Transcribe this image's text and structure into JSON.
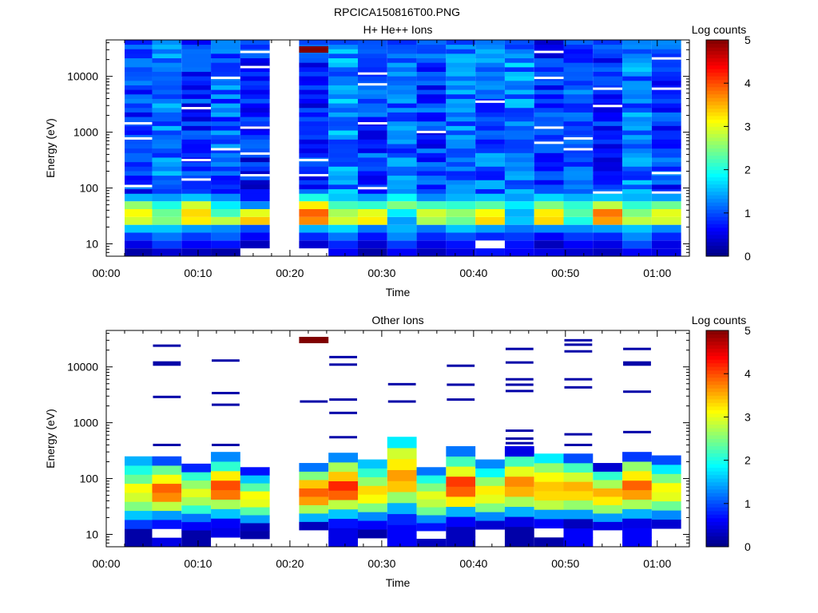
{
  "figure_title": "RPCICA150816T00.PNG",
  "chart_data": [
    {
      "type": "heatmap",
      "title": "H+ He++ Ions",
      "xlabel": "Time",
      "ylabel": "Energy (eV)",
      "colorbar_label": "Log counts",
      "x_ticks": [
        "00:00",
        "00:10",
        "00:20",
        "00:30",
        "00:40",
        "00:50",
        "01:00"
      ],
      "y_ticks": [
        "10",
        "100",
        "1000",
        "10000"
      ],
      "y_scale": "log",
      "ylim": [
        6,
        45000
      ],
      "colorbar_ticks": [
        "0",
        "1",
        "2",
        "3",
        "4",
        "5"
      ],
      "colorbar_range": [
        0,
        5
      ],
      "columns": [
        {
          "start": 2.0,
          "end": 5.0,
          "low": [
            0.2,
            0.5,
            0.9,
            1.6,
            2.9,
            3.1,
            2.6,
            1.5
          ],
          "high": 0.9,
          "gaps": [
            0.62,
            0.55,
            0.33
          ]
        },
        {
          "start": 5.0,
          "end": 8.2,
          "low": [
            0.4,
            0.9,
            1.2,
            1.6,
            2.5,
            2.4,
            2.0,
            1.4
          ],
          "high": 1.2,
          "gaps": []
        },
        {
          "start": 8.2,
          "end": 11.4,
          "low": [
            0.3,
            0.6,
            0.9,
            1.4,
            3.2,
            3.3,
            2.9,
            1.6
          ],
          "high": 0.8,
          "gaps": [
            0.69,
            0.45,
            0.36
          ]
        },
        {
          "start": 11.4,
          "end": 14.6,
          "low": [
            0.2,
            0.7,
            1.1,
            1.3,
            2.8,
            2.2,
            1.8,
            1.3
          ],
          "high": 1.1,
          "gaps": [
            0.83,
            0.5
          ]
        },
        {
          "start": 14.6,
          "end": 17.8,
          "low": [
            null,
            0.3,
            0.6,
            1.0,
            3.4,
            3.0,
            1.3,
            0.7
          ],
          "high": 0.7,
          "gaps": [
            0.95,
            0.88,
            0.6,
            0.48,
            0.38
          ]
        },
        {
          "start": 21.0,
          "end": 24.2,
          "low": [
            null,
            0.4,
            0.8,
            1.5,
            3.7,
            3.9,
            3.2,
            2.0
          ],
          "high": 0.8,
          "gaps": [
            0.45,
            0.38
          ],
          "top_level": 5.0
        },
        {
          "start": 24.2,
          "end": 27.4,
          "low": [
            0.6,
            0.8,
            1.2,
            1.7,
            2.9,
            2.7,
            2.2,
            1.6
          ],
          "high": 1.3,
          "gaps": []
        },
        {
          "start": 27.4,
          "end": 30.6,
          "low": [
            0.2,
            0.4,
            0.7,
            1.2,
            3.2,
            3.0,
            2.1,
            1.4
          ],
          "high": 0.9,
          "gaps": [
            0.85,
            0.8,
            0.62,
            0.32
          ]
        },
        {
          "start": 30.6,
          "end": 33.8,
          "low": [
            0.6,
            0.9,
            1.3,
            1.5,
            1.4,
            1.8,
            2.5,
            1.9
          ],
          "high": 1.1,
          "gaps": []
        },
        {
          "start": 33.8,
          "end": 37.0,
          "low": [
            0.3,
            0.5,
            0.8,
            1.2,
            2.7,
            2.9,
            2.2,
            1.3
          ],
          "high": 0.9,
          "gaps": [
            0.58
          ]
        },
        {
          "start": 37.0,
          "end": 40.2,
          "low": [
            0.5,
            0.7,
            1.0,
            1.6,
            2.4,
            2.6,
            2.1,
            1.5
          ],
          "high": 1.2,
          "gaps": []
        },
        {
          "start": 40.2,
          "end": 43.4,
          "low": [
            0.7,
            null,
            0.8,
            1.4,
            3.3,
            3.1,
            2.3,
            1.6
          ],
          "high": 1.1,
          "gaps": [
            0.72
          ]
        },
        {
          "start": 43.4,
          "end": 46.6,
          "low": [
            0.6,
            0.7,
            0.9,
            1.2,
            1.6,
            1.5,
            1.8,
            1.4
          ],
          "high": 1.3,
          "gaps": []
        },
        {
          "start": 46.6,
          "end": 49.8,
          "low": [
            0.5,
            0.3,
            0.6,
            1.3,
            3.3,
            3.2,
            2.5,
            1.7
          ],
          "high": 0.8,
          "gaps": [
            0.95,
            0.83,
            0.6,
            0.53
          ]
        },
        {
          "start": 49.8,
          "end": 53.0,
          "low": [
            0.4,
            0.6,
            0.9,
            1.3,
            2.0,
            2.3,
            2.1,
            1.5
          ],
          "high": 1.0,
          "gaps": [
            0.55,
            0.5
          ]
        },
        {
          "start": 53.0,
          "end": 56.2,
          "low": [
            0.3,
            0.5,
            0.8,
            1.4,
            3.6,
            3.8,
            2.8,
            1.6
          ],
          "high": 0.8,
          "gaps": [
            0.78,
            0.7,
            0.3
          ]
        },
        {
          "start": 56.2,
          "end": 59.4,
          "low": [
            0.6,
            1.0,
            1.3,
            1.6,
            2.8,
            2.5,
            2.1,
            1.5
          ],
          "high": 1.2,
          "gaps": []
        },
        {
          "start": 59.4,
          "end": 62.6,
          "low": [
            0.5,
            0.5,
            0.8,
            1.3,
            2.9,
            3.0,
            2.4,
            1.4
          ],
          "high": 0.9,
          "gaps": [
            0.92,
            0.78,
            0.39,
            0.3
          ]
        }
      ]
    },
    {
      "type": "heatmap",
      "title": "Other Ions",
      "xlabel": "Time",
      "ylabel": "Energy (eV)",
      "colorbar_label": "Log counts",
      "x_ticks": [
        "00:00",
        "00:10",
        "00:20",
        "00:30",
        "00:40",
        "00:50",
        "01:00"
      ],
      "y_ticks": [
        "10",
        "100",
        "1000",
        "10000"
      ],
      "y_scale": "log",
      "ylim": [
        6,
        45000
      ],
      "colorbar_ticks": [
        "0",
        "1",
        "2",
        "3",
        "4",
        "5"
      ],
      "colorbar_range": [
        0,
        5
      ],
      "columns": [
        {
          "start": 2.0,
          "end": 5.0,
          "ymax": 250,
          "lines": [],
          "low": [
            0.2,
            0.2,
            0.9,
            1.6,
            2.5,
            2.9,
            3.1,
            2.4,
            2.0,
            1.5
          ]
        },
        {
          "start": 5.0,
          "end": 8.2,
          "ymax": 250,
          "lines": [
            24000,
            12000,
            11000,
            2900,
            400
          ],
          "low": [
            0.5,
            null,
            0.7,
            1.4,
            2.8,
            3.7,
            3.9,
            3.1,
            2.4,
            1.0
          ]
        },
        {
          "start": 8.2,
          "end": 11.4,
          "ymax": 185,
          "lines": [],
          "low": [
            0.2,
            0.2,
            0.6,
            1.2,
            2.1,
            2.7,
            3.0,
            2.6,
            2.1,
            0.8
          ]
        },
        {
          "start": 11.4,
          "end": 14.6,
          "ymax": 300,
          "lines": [
            13000,
            3400,
            2100,
            400
          ],
          "low": [
            null,
            0.5,
            0.6,
            1.6,
            2.7,
            3.8,
            4.0,
            3.2,
            2.1,
            1.3
          ]
        },
        {
          "start": 14.6,
          "end": 17.8,
          "ymax": 160,
          "lines": [],
          "low": [
            null,
            0.2,
            0.3,
            1.4,
            2.3,
            3.0,
            3.1,
            2.3,
            1.6,
            0.7
          ]
        },
        {
          "start": 21.0,
          "end": 24.2,
          "ymax": 190,
          "lines": [
            2400
          ],
          "low": [
            null,
            null,
            0.3,
            1.5,
            2.7,
            3.6,
            3.9,
            3.4,
            2.5,
            1.2
          ],
          "top_level": 5.0
        },
        {
          "start": 24.2,
          "end": 27.4,
          "ymax": 290,
          "lines": [
            15000,
            11000,
            2600,
            1500,
            550
          ],
          "low": [
            0.5,
            0.5,
            0.7,
            1.6,
            2.8,
            3.9,
            4.2,
            3.4,
            2.7,
            1.3
          ]
        },
        {
          "start": 27.4,
          "end": 30.6,
          "ymax": 220,
          "lines": [],
          "low": [
            null,
            0.2,
            0.6,
            1.3,
            2.5,
            3.1,
            3.3,
            2.6,
            2.1,
            1.6
          ]
        },
        {
          "start": 30.6,
          "end": 33.8,
          "ymax": 560,
          "lines": [
            4900,
            2400
          ],
          "low": [
            0.6,
            0.6,
            0.8,
            1.5,
            2.6,
            3.4,
            3.6,
            3.2,
            2.9,
            1.8
          ]
        },
        {
          "start": 33.8,
          "end": 37.0,
          "ymax": 160,
          "lines": [],
          "low": [
            0.3,
            null,
            0.7,
            1.3,
            2.4,
            2.8,
            3.0,
            2.5,
            2.0,
            1.2
          ]
        },
        {
          "start": 37.0,
          "end": 40.2,
          "ymax": 380,
          "lines": [
            10500,
            4800,
            2600
          ],
          "low": [
            0.3,
            0.3,
            0.6,
            1.5,
            3.2,
            3.9,
            4.1,
            3.0,
            2.2,
            1.2
          ]
        },
        {
          "start": 40.2,
          "end": 43.4,
          "ymax": 220,
          "lines": [],
          "low": [
            null,
            null,
            0.4,
            1.3,
            2.5,
            3.0,
            3.2,
            2.6,
            1.9,
            1.3
          ]
        },
        {
          "start": 43.4,
          "end": 46.6,
          "ymax": 380,
          "lines": [
            21000,
            12000,
            6000,
            4800,
            3700,
            720,
            520,
            430
          ],
          "low": [
            0.2,
            0.2,
            0.5,
            1.5,
            2.7,
            3.5,
            3.7,
            3.0,
            2.2,
            0.5
          ]
        },
        {
          "start": 46.6,
          "end": 49.8,
          "ymax": 280,
          "lines": [],
          "low": [
            0.2,
            null,
            0.6,
            1.4,
            2.8,
            3.3,
            3.4,
            3.1,
            2.6,
            1.8
          ]
        },
        {
          "start": 49.8,
          "end": 53.0,
          "ymax": 280,
          "lines": [
            30000,
            25000,
            19000,
            6000,
            4300,
            620,
            400
          ],
          "low": [
            0.6,
            0.6,
            0.3,
            1.4,
            2.6,
            3.3,
            3.5,
            2.9,
            2.2,
            1.0
          ]
        },
        {
          "start": 53.0,
          "end": 56.2,
          "ymax": 190,
          "lines": [],
          "low": [
            null,
            null,
            0.5,
            1.4,
            2.6,
            3.2,
            3.5,
            2.7,
            2.1,
            0.4
          ]
        },
        {
          "start": 56.2,
          "end": 59.4,
          "ymax": 300,
          "lines": [
            21000,
            12000,
            11000,
            3600,
            680
          ],
          "low": [
            0.6,
            0.6,
            0.5,
            1.5,
            2.7,
            3.6,
            3.9,
            3.2,
            2.6,
            0.9
          ]
        },
        {
          "start": 59.4,
          "end": 62.6,
          "ymax": 260,
          "lines": [],
          "low": [
            null,
            null,
            0.4,
            1.3,
            2.4,
            3.0,
            3.1,
            2.5,
            1.8,
            1.0
          ]
        }
      ]
    }
  ]
}
